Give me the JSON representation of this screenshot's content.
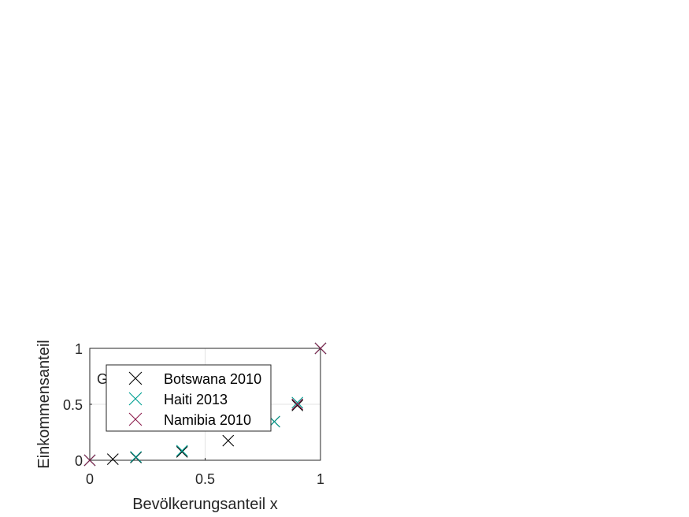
{
  "chart_data": {
    "type": "scatter",
    "xlabel": "Bevölkerungsanteil x",
    "ylabel": "Einkommensanteil",
    "xlim": [
      0,
      1
    ],
    "ylim": [
      0,
      1
    ],
    "xticks": [
      "0",
      "0.5",
      "1"
    ],
    "yticks": [
      "0",
      "0.5",
      "1"
    ],
    "grid": true,
    "legend_position": "inside-left",
    "annotation": "G",
    "marker": "x",
    "series": [
      {
        "name": "Botswana 2010",
        "color": "#000000",
        "x": [
          0,
          0.1,
          0.2,
          0.4,
          0.6,
          0.8,
          0.9,
          1
        ],
        "y": [
          0,
          0.01,
          0.025,
          0.075,
          0.175,
          0.345,
          0.49,
          1
        ]
      },
      {
        "name": "Haiti 2013",
        "color": "#00a092",
        "x": [
          0,
          0.2,
          0.4,
          0.8,
          0.9,
          1
        ],
        "y": [
          0,
          0.03,
          0.085,
          0.345,
          0.515,
          1
        ]
      },
      {
        "name": "Namibia 2010",
        "color": "#8b1a4a",
        "x": [
          0,
          0.9,
          1
        ],
        "y": [
          0,
          0.5,
          1
        ]
      }
    ]
  }
}
